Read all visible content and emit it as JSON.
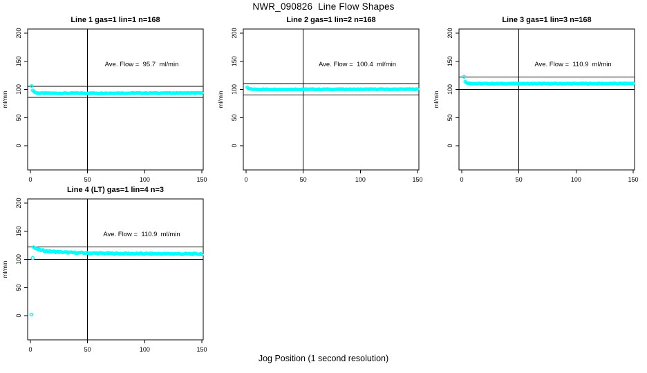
{
  "figure": {
    "title": "NWR_090826  Line Flow Shapes",
    "x_axis_label": "Jog Position (1 second resolution)"
  },
  "colors": {
    "points": "#00ffff",
    "axis": "#000000",
    "background": "#ffffff",
    "text": "#000000"
  },
  "chart_data": [
    {
      "type": "scatter",
      "title": "Line 1 gas=1 lin=1 n=168",
      "annotation": "Ave. Flow =  95.7  ml/min",
      "ave_flow_ml_min": 95.7,
      "n_points": 168,
      "ylabel": "ml/min",
      "xlim": [
        0,
        150
      ],
      "ylim": [
        0,
        200
      ],
      "xticks": [
        0,
        50,
        100,
        150
      ],
      "yticks": [
        0,
        50,
        100,
        150,
        200
      ],
      "ref_lines": {
        "upper": 105.3,
        "lower": 86.1,
        "vertical_x": 50
      },
      "jitter": 0.6,
      "profile": [
        [
          1,
          105.5
        ],
        [
          2,
          99.0
        ],
        [
          3,
          96.5
        ],
        [
          4,
          95.0
        ],
        [
          5,
          94.0
        ],
        [
          6,
          93.5
        ],
        [
          10,
          93.2
        ],
        [
          20,
          93.2
        ],
        [
          40,
          93.3
        ],
        [
          60,
          93.3
        ],
        [
          80,
          93.4
        ],
        [
          100,
          93.4
        ],
        [
          125,
          93.5
        ],
        [
          150,
          93.5
        ]
      ],
      "outliers": []
    },
    {
      "type": "scatter",
      "title": "Line 2 gas=1 lin=2 n=168",
      "annotation": "Ave. Flow =  100.4  ml/min",
      "ave_flow_ml_min": 100.4,
      "n_points": 168,
      "ylabel": "ml/min",
      "xlim": [
        0,
        150
      ],
      "ylim": [
        0,
        200
      ],
      "xticks": [
        0,
        50,
        100,
        150
      ],
      "yticks": [
        0,
        50,
        100,
        150,
        200
      ],
      "ref_lines": {
        "upper": 110.4,
        "lower": 90.4,
        "vertical_x": 50
      },
      "jitter": 0.5,
      "profile": [
        [
          1,
          104.0
        ],
        [
          2,
          101.5
        ],
        [
          3,
          100.8
        ],
        [
          4,
          100.5
        ],
        [
          6,
          100.3
        ],
        [
          10,
          100.2
        ],
        [
          30,
          100.2
        ],
        [
          60,
          100.3
        ],
        [
          100,
          100.3
        ],
        [
          150,
          100.4
        ]
      ],
      "outliers": []
    },
    {
      "type": "scatter",
      "title": "Line 3 gas=1 lin=3 n=168",
      "annotation": "Ave. Flow =  110.9  ml/min",
      "ave_flow_ml_min": 110.9,
      "n_points": 168,
      "ylabel": "ml/min",
      "xlim": [
        0,
        150
      ],
      "ylim": [
        0,
        200
      ],
      "xticks": [
        0,
        50,
        100,
        150
      ],
      "yticks": [
        0,
        50,
        100,
        150,
        200
      ],
      "ref_lines": {
        "upper": 122.0,
        "lower": 99.8,
        "vertical_x": 50
      },
      "jitter": 0.6,
      "profile": [
        [
          3,
          113.5
        ],
        [
          4,
          112.3
        ],
        [
          5,
          111.5
        ],
        [
          6,
          111.0
        ],
        [
          8,
          110.7
        ],
        [
          12,
          110.4
        ],
        [
          20,
          110.3
        ],
        [
          40,
          110.3
        ],
        [
          80,
          110.4
        ],
        [
          120,
          110.4
        ],
        [
          150,
          110.5
        ]
      ],
      "outliers": [
        [
          2,
          122.5
        ]
      ]
    },
    {
      "type": "scatter",
      "title": "Line 4 (LT) gas=1 lin=4 n=3",
      "annotation": "Ave. Flow =  110.9  ml/min",
      "ave_flow_ml_min": 110.9,
      "n_points": 3,
      "ylabel": "ml/min",
      "xlim": [
        0,
        150
      ],
      "ylim": [
        0,
        200
      ],
      "xticks": [
        0,
        50,
        100,
        150
      ],
      "yticks": [
        0,
        50,
        100,
        150,
        200
      ],
      "ref_lines": {
        "upper": 122.0,
        "lower": 99.8,
        "vertical_x": 50
      },
      "jitter": 1.1,
      "profile": [
        [
          3,
          121.5
        ],
        [
          4,
          120.0
        ],
        [
          5,
          119.0
        ],
        [
          6,
          118.0
        ],
        [
          8,
          116.8
        ],
        [
          10,
          116.0
        ],
        [
          14,
          114.8
        ],
        [
          18,
          114.0
        ],
        [
          24,
          113.2
        ],
        [
          30,
          112.5
        ],
        [
          40,
          111.7
        ],
        [
          50,
          111.2
        ],
        [
          60,
          110.8
        ],
        [
          75,
          110.4
        ],
        [
          90,
          110.1
        ],
        [
          110,
          109.9
        ],
        [
          130,
          109.7
        ],
        [
          150,
          109.6
        ]
      ],
      "outliers": [
        [
          1,
          2
        ],
        [
          2,
          102.5
        ]
      ]
    }
  ]
}
